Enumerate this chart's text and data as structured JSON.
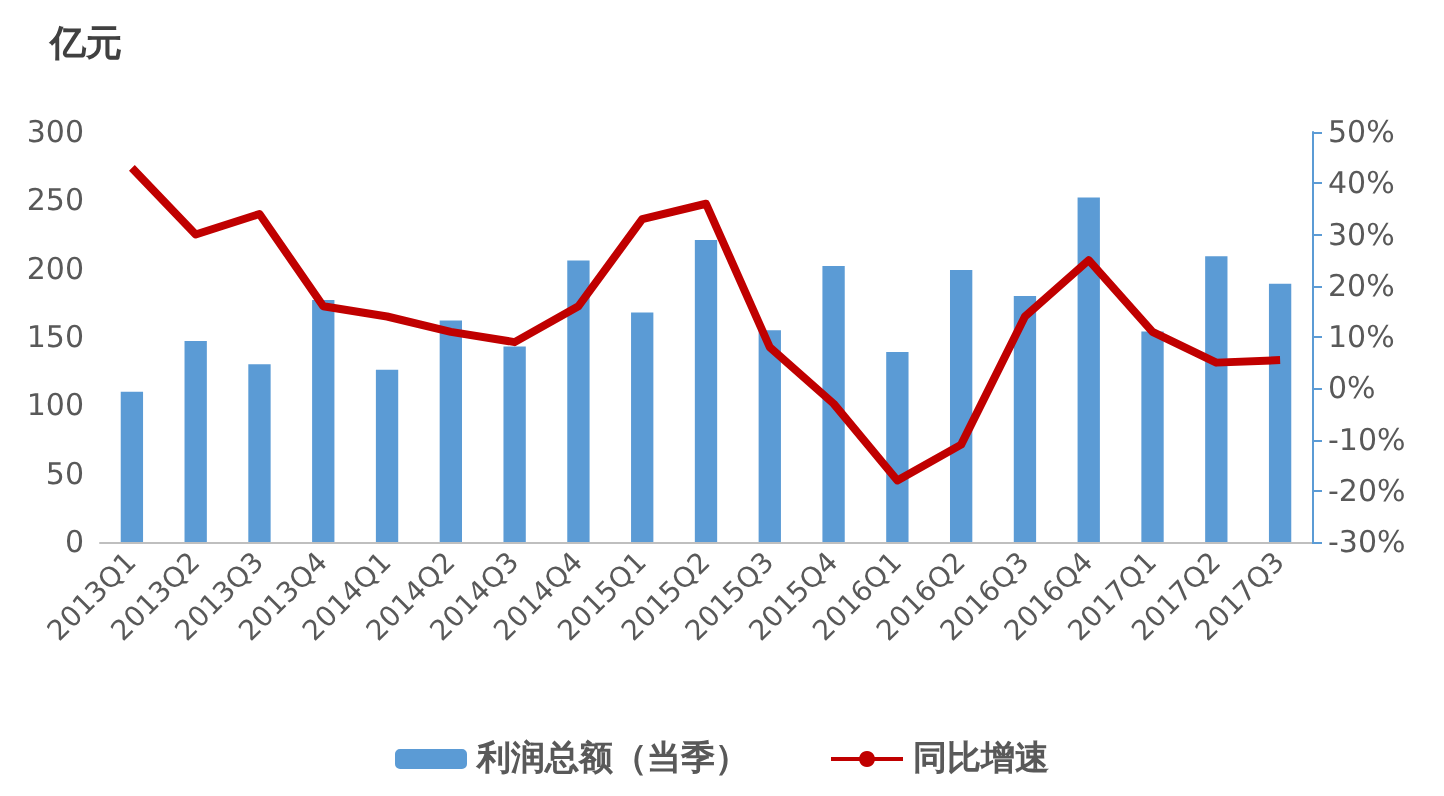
{
  "chart_data": {
    "type": "bar",
    "ylabel": "亿元",
    "categories": [
      "2013Q1",
      "2013Q2",
      "2013Q3",
      "2013Q4",
      "2014Q1",
      "2014Q2",
      "2014Q3",
      "2014Q4",
      "2015Q1",
      "2015Q2",
      "2015Q3",
      "2015Q4",
      "2016Q1",
      "2016Q2",
      "2016Q3",
      "2016Q4",
      "2017Q1",
      "2017Q2",
      "2017Q3"
    ],
    "series": [
      {
        "name": "利润总额（当季）",
        "color": "#5b9bd5",
        "values": [
          110,
          147,
          130,
          177,
          126,
          162,
          143,
          206,
          168,
          221,
          155,
          202,
          139,
          199,
          180,
          252,
          154,
          209,
          189
        ]
      },
      {
        "name": "同比增速",
        "type": "line",
        "axis": "y2",
        "color": "#c00000",
        "values": [
          43,
          30,
          34,
          16,
          14,
          11,
          9,
          16,
          33,
          36,
          8,
          -3,
          -18,
          -11,
          14,
          25,
          11,
          5,
          5.5
        ]
      }
    ],
    "ylim": [
      0,
      300
    ],
    "yticks": [
      0,
      50,
      100,
      150,
      200,
      250,
      300
    ],
    "y2lim": [
      -30,
      50
    ],
    "y2ticks": [
      {
        "value": -30,
        "label": "-30%"
      },
      {
        "value": -20,
        "label": "-20%"
      },
      {
        "value": -10,
        "label": "-10%"
      },
      {
        "value": 0,
        "label": "0%"
      },
      {
        "value": 10,
        "label": "10%"
      },
      {
        "value": 20,
        "label": "20%"
      },
      {
        "value": 30,
        "label": "30%"
      },
      {
        "value": 40,
        "label": "40%"
      },
      {
        "value": 50,
        "label": "50%"
      }
    ],
    "grid": false,
    "legend": "bottom",
    "marker": "none",
    "line_style": "solid"
  }
}
